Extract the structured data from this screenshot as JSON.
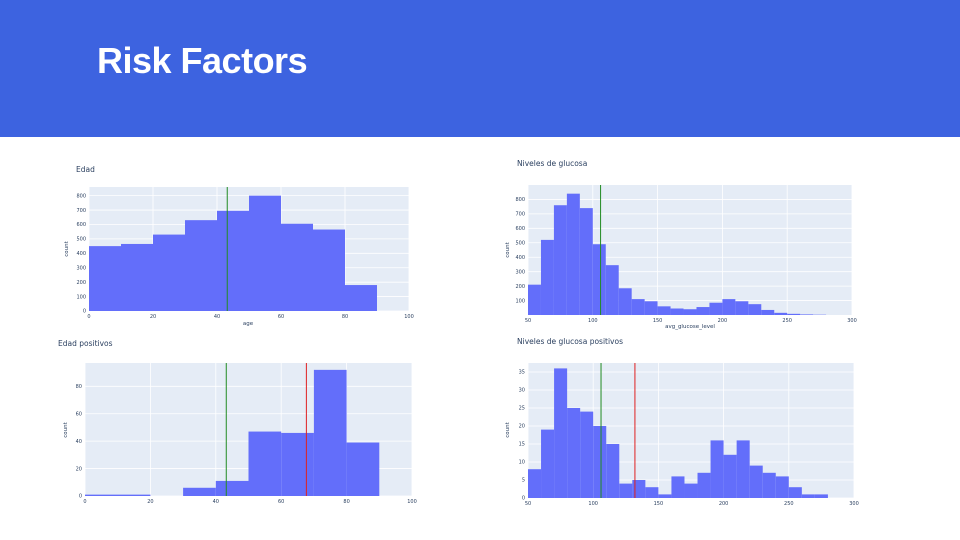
{
  "slide": {
    "title": "Risk Factors"
  },
  "colors": {
    "header_bg": "#3d63e0",
    "bar": "#636efa",
    "plot_bg": "#e5ecf6",
    "grid": "#ffffff",
    "green_line": "#228b22",
    "red_line": "#e02020"
  },
  "chart_data": [
    {
      "id": "edad",
      "type": "bar",
      "title": "Edad",
      "xlabel": "age",
      "ylabel": "count",
      "xlim": [
        0,
        100
      ],
      "ylim": [
        0,
        860
      ],
      "xticks": [
        "0",
        "20",
        "40",
        "60",
        "80",
        "100"
      ],
      "xtick_values": [
        0,
        20,
        40,
        60,
        80,
        100
      ],
      "yticks": [
        "0",
        "100",
        "200",
        "300",
        "400",
        "500",
        "600",
        "700",
        "800"
      ],
      "ytick_values": [
        0,
        100,
        200,
        300,
        400,
        500,
        600,
        700,
        800
      ],
      "bins": [
        {
          "x0": 0,
          "x1": 10,
          "y": 450
        },
        {
          "x0": 10,
          "x1": 20,
          "y": 465
        },
        {
          "x0": 20,
          "x1": 30,
          "y": 530
        },
        {
          "x0": 30,
          "x1": 40,
          "y": 630
        },
        {
          "x0": 40,
          "x1": 50,
          "y": 695
        },
        {
          "x0": 50,
          "x1": 60,
          "y": 800
        },
        {
          "x0": 60,
          "x1": 70,
          "y": 605
        },
        {
          "x0": 70,
          "x1": 80,
          "y": 565
        },
        {
          "x0": 80,
          "x1": 90,
          "y": 180
        }
      ],
      "vlines": [
        {
          "x": 43.2,
          "color": "green"
        }
      ]
    },
    {
      "id": "glucosa",
      "type": "bar",
      "title": "Niveles de glucosa",
      "xlabel": "avg_glucose_level",
      "ylabel": "count",
      "xlim": [
        50,
        300
      ],
      "ylim": [
        0,
        900
      ],
      "xticks": [
        "50",
        "100",
        "150",
        "200",
        "250",
        "300"
      ],
      "xtick_values": [
        50,
        100,
        150,
        200,
        250,
        300
      ],
      "yticks": [
        "100",
        "200",
        "300",
        "400",
        "500",
        "600",
        "700",
        "800"
      ],
      "ytick_values": [
        100,
        200,
        300,
        400,
        500,
        600,
        700,
        800
      ],
      "bins": [
        {
          "x0": 50,
          "x1": 60,
          "y": 210
        },
        {
          "x0": 60,
          "x1": 70,
          "y": 520
        },
        {
          "x0": 70,
          "x1": 80,
          "y": 760
        },
        {
          "x0": 80,
          "x1": 90,
          "y": 840
        },
        {
          "x0": 90,
          "x1": 100,
          "y": 740
        },
        {
          "x0": 100,
          "x1": 110,
          "y": 490
        },
        {
          "x0": 110,
          "x1": 120,
          "y": 345
        },
        {
          "x0": 120,
          "x1": 130,
          "y": 185
        },
        {
          "x0": 130,
          "x1": 140,
          "y": 110
        },
        {
          "x0": 140,
          "x1": 150,
          "y": 95
        },
        {
          "x0": 150,
          "x1": 160,
          "y": 60
        },
        {
          "x0": 160,
          "x1": 170,
          "y": 45
        },
        {
          "x0": 170,
          "x1": 180,
          "y": 40
        },
        {
          "x0": 180,
          "x1": 190,
          "y": 55
        },
        {
          "x0": 190,
          "x1": 200,
          "y": 85
        },
        {
          "x0": 200,
          "x1": 210,
          "y": 110
        },
        {
          "x0": 210,
          "x1": 220,
          "y": 95
        },
        {
          "x0": 220,
          "x1": 230,
          "y": 75
        },
        {
          "x0": 230,
          "x1": 240,
          "y": 35
        },
        {
          "x0": 240,
          "x1": 250,
          "y": 15
        },
        {
          "x0": 250,
          "x1": 260,
          "y": 8
        },
        {
          "x0": 260,
          "x1": 270,
          "y": 4
        },
        {
          "x0": 270,
          "x1": 280,
          "y": 2
        }
      ],
      "vlines": [
        {
          "x": 106,
          "color": "green"
        }
      ]
    },
    {
      "id": "edad_positivos",
      "type": "bar",
      "title": "Edad positivos",
      "xlabel": "",
      "ylabel": "count",
      "xlim": [
        0,
        100
      ],
      "ylim": [
        0,
        97
      ],
      "xticks": [
        "0",
        "20",
        "40",
        "60",
        "80",
        "100"
      ],
      "xtick_values": [
        0,
        20,
        40,
        60,
        80,
        100
      ],
      "yticks": [
        "0",
        "20",
        "40",
        "60",
        "80"
      ],
      "ytick_values": [
        0,
        20,
        40,
        60,
        80
      ],
      "bins": [
        {
          "x0": 0,
          "x1": 20,
          "y": 1
        },
        {
          "x0": 30,
          "x1": 40,
          "y": 6
        },
        {
          "x0": 40,
          "x1": 50,
          "y": 11
        },
        {
          "x0": 50,
          "x1": 60,
          "y": 47
        },
        {
          "x0": 60,
          "x1": 70,
          "y": 46
        },
        {
          "x0": 70,
          "x1": 80,
          "y": 92
        },
        {
          "x0": 80,
          "x1": 90,
          "y": 39
        }
      ],
      "vlines": [
        {
          "x": 43.2,
          "color": "green"
        },
        {
          "x": 67.7,
          "color": "red"
        }
      ]
    },
    {
      "id": "glucosa_positivos",
      "type": "bar",
      "title": "Niveles de glucosa positivos",
      "xlabel": "",
      "ylabel": "count",
      "xlim": [
        50,
        300
      ],
      "ylim": [
        0,
        37.5
      ],
      "xticks": [
        "50",
        "100",
        "150",
        "200",
        "250",
        "300"
      ],
      "xtick_values": [
        50,
        100,
        150,
        200,
        250,
        300
      ],
      "yticks": [
        "0",
        "5",
        "10",
        "15",
        "20",
        "25",
        "30",
        "35"
      ],
      "ytick_values": [
        0,
        5,
        10,
        15,
        20,
        25,
        30,
        35
      ],
      "bins": [
        {
          "x0": 50,
          "x1": 60,
          "y": 8
        },
        {
          "x0": 60,
          "x1": 70,
          "y": 19
        },
        {
          "x0": 70,
          "x1": 80,
          "y": 36
        },
        {
          "x0": 80,
          "x1": 90,
          "y": 25
        },
        {
          "x0": 90,
          "x1": 100,
          "y": 24
        },
        {
          "x0": 100,
          "x1": 110,
          "y": 20
        },
        {
          "x0": 110,
          "x1": 120,
          "y": 15
        },
        {
          "x0": 120,
          "x1": 130,
          "y": 4
        },
        {
          "x0": 130,
          "x1": 140,
          "y": 5
        },
        {
          "x0": 140,
          "x1": 150,
          "y": 3
        },
        {
          "x0": 150,
          "x1": 160,
          "y": 1
        },
        {
          "x0": 160,
          "x1": 170,
          "y": 6
        },
        {
          "x0": 170,
          "x1": 180,
          "y": 4
        },
        {
          "x0": 180,
          "x1": 190,
          "y": 7
        },
        {
          "x0": 190,
          "x1": 200,
          "y": 16
        },
        {
          "x0": 200,
          "x1": 210,
          "y": 12
        },
        {
          "x0": 210,
          "x1": 220,
          "y": 16
        },
        {
          "x0": 220,
          "x1": 230,
          "y": 9
        },
        {
          "x0": 230,
          "x1": 240,
          "y": 7
        },
        {
          "x0": 240,
          "x1": 250,
          "y": 6
        },
        {
          "x0": 250,
          "x1": 260,
          "y": 3
        },
        {
          "x0": 260,
          "x1": 270,
          "y": 1
        },
        {
          "x0": 270,
          "x1": 280,
          "y": 1
        }
      ],
      "vlines": [
        {
          "x": 106,
          "color": "green"
        },
        {
          "x": 132,
          "color": "red"
        }
      ]
    }
  ]
}
